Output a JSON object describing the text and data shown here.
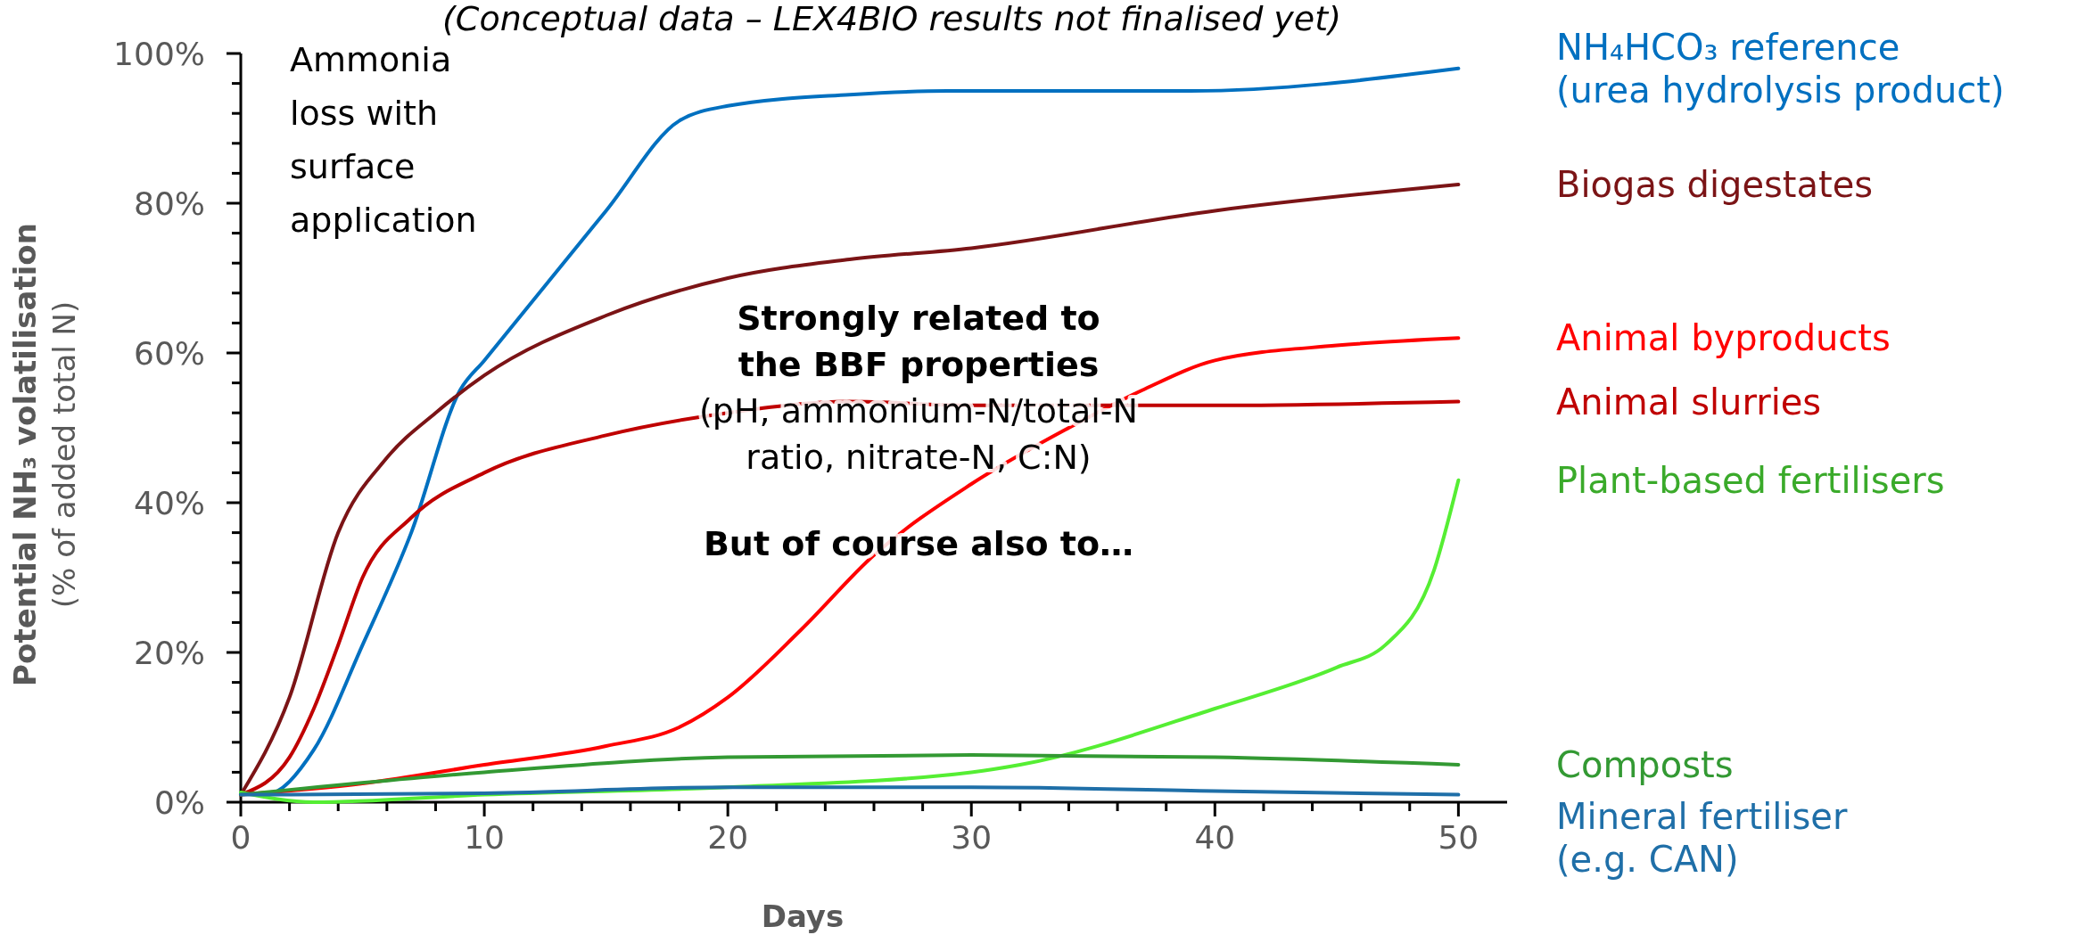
{
  "chart_data": {
    "type": "line",
    "title": "(Conceptual data – LEX4BIO results not finalised yet)",
    "xlabel": "Days",
    "ylabel": "Potential NH₃ volatilisation (% of added total N)",
    "annotations": [
      "Ammonia loss with surface application",
      "Strongly related to the BBF properties",
      "(pH, ammonium-N/total-N ratio, nitrate-N, C:N)",
      "But of course also to…"
    ],
    "xlim": [
      0,
      52
    ],
    "ylim": [
      0,
      100
    ],
    "xticks": [
      0,
      {
        "value": 2,
        "label": null
      },
      {
        "value": 4,
        "label": null
      },
      {
        "value": 6,
        "label": null
      },
      {
        "value": 8,
        "label": null
      },
      10,
      {
        "value": 12,
        "label": null
      },
      {
        "value": 14,
        "label": null
      },
      {
        "value": 16,
        "label": null
      },
      {
        "value": 18,
        "label": null
      },
      20,
      {
        "value": 22,
        "label": null
      },
      {
        "value": 24,
        "label": null
      },
      {
        "value": 26,
        "label": null
      },
      {
        "value": 28,
        "label": null
      },
      30,
      {
        "value": 32,
        "label": null
      },
      {
        "value": 34,
        "label": null
      },
      {
        "value": 36,
        "label": null
      },
      {
        "value": 38,
        "label": null
      },
      40,
      {
        "value": 42,
        "label": null
      },
      {
        "value": 44,
        "label": null
      },
      {
        "value": 46,
        "label": null
      },
      {
        "value": 48,
        "label": null
      },
      50
    ],
    "yticks": [
      {
        "value": 0,
        "label": "0%"
      },
      {
        "value": 4,
        "label": null
      },
      {
        "value": 8,
        "label": null
      },
      {
        "value": 12,
        "label": null
      },
      {
        "value": 16,
        "label": null
      },
      {
        "value": 20,
        "label": "20%"
      },
      {
        "value": 24,
        "label": null
      },
      {
        "value": 28,
        "label": null
      },
      {
        "value": 32,
        "label": null
      },
      {
        "value": 36,
        "label": null
      },
      {
        "value": 40,
        "label": "40%"
      },
      {
        "value": 44,
        "label": null
      },
      {
        "value": 48,
        "label": null
      },
      {
        "value": 52,
        "label": null
      },
      {
        "value": 56,
        "label": null
      },
      {
        "value": 60,
        "label": "60%"
      },
      {
        "value": 64,
        "label": null
      },
      {
        "value": 68,
        "label": null
      },
      {
        "value": 72,
        "label": null
      },
      {
        "value": 76,
        "label": null
      },
      {
        "value": 80,
        "label": "80%"
      },
      {
        "value": 84,
        "label": null
      },
      {
        "value": 88,
        "label": null
      },
      {
        "value": 92,
        "label": null
      },
      {
        "value": 96,
        "label": null
      },
      {
        "value": 100,
        "label": "100%"
      }
    ],
    "grid": false,
    "legend": false,
    "series": [
      {
        "name": "NH₄HCO₃ reference (urea hydrolysis product)",
        "color": "#0070c0",
        "x": [
          0,
          1,
          3,
          5,
          7,
          9,
          10,
          15,
          18,
          20,
          25,
          29,
          39,
          50
        ],
        "values": [
          1.2,
          1,
          7,
          21,
          36,
          55,
          59,
          79,
          91,
          93,
          94.5,
          95,
          95,
          98
        ]
      },
      {
        "name": "Biogas digestates",
        "color": "#7b1416",
        "x": [
          0,
          2,
          4,
          6,
          8,
          10,
          15,
          20,
          25,
          30,
          40,
          50
        ],
        "values": [
          1,
          14,
          36,
          46,
          52,
          57,
          65,
          70,
          72.5,
          74,
          79,
          82.5
        ]
      },
      {
        "name": "Animal byproducts",
        "color": "#ff0000",
        "x": [
          0,
          5,
          10,
          15,
          18,
          20,
          23,
          26,
          30,
          34,
          37,
          40,
          45,
          50
        ],
        "values": [
          1,
          2.5,
          5,
          7.5,
          10,
          14,
          23,
          33,
          42.5,
          50,
          55,
          59,
          61,
          62
        ]
      },
      {
        "name": "Animal slurries",
        "color": "#c00000",
        "x": [
          0,
          2,
          3,
          4,
          5,
          7,
          10,
          15,
          20,
          25,
          30,
          40,
          50
        ],
        "values": [
          1,
          6,
          12.5,
          21,
          30,
          38,
          44,
          49,
          52,
          53.5,
          53,
          53,
          53.5
        ]
      },
      {
        "name": "Plant-based fertilisers",
        "color": "#55ee33",
        "x": [
          0,
          3,
          10,
          20,
          30,
          32,
          40,
          45,
          47,
          49,
          50
        ],
        "values": [
          1.3,
          0,
          1,
          2,
          4,
          5,
          12.5,
          18,
          21,
          31,
          43
        ]
      },
      {
        "name": "Composts",
        "color": "#339933",
        "x": [
          0,
          10,
          20,
          30,
          40,
          50
        ],
        "values": [
          1,
          4,
          6,
          6.3,
          6,
          5
        ]
      },
      {
        "name": "Mineral fertiliser (e.g. CAN)",
        "color": "#1f6fa8",
        "x": [
          0,
          10,
          20,
          30,
          40,
          50
        ],
        "values": [
          1,
          1.2,
          2,
          2,
          1.5,
          1
        ]
      }
    ]
  }
}
